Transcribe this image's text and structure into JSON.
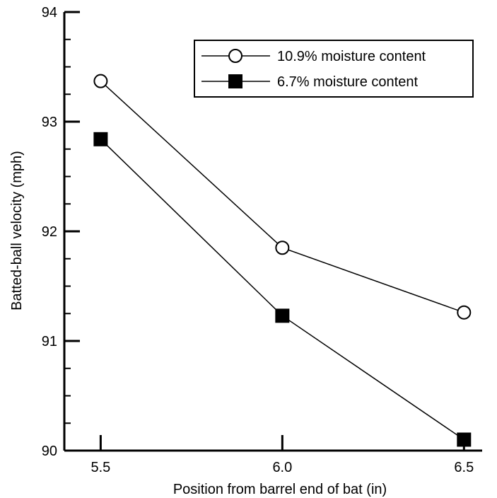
{
  "chart_data": {
    "type": "line",
    "xlabel": "Position from barrel end of bat (in)",
    "ylabel": "Batted-ball velocity (mph)",
    "x": [
      5.5,
      6.0,
      6.5
    ],
    "x_tick_labels": [
      "5.5",
      "6.0",
      "6.5"
    ],
    "xlim": [
      5.4,
      6.55
    ],
    "ylim": [
      90,
      94
    ],
    "y_ticks": [
      90,
      91,
      92,
      93,
      94
    ],
    "y_tick_labels": [
      "90",
      "91",
      "92",
      "93",
      "94"
    ],
    "y_minor_tick_step": 0.25,
    "grid": false,
    "legend_position": "top-right",
    "series": [
      {
        "name": "10.9% moisture content",
        "marker": "open-circle",
        "color": "#000000",
        "values": [
          93.37,
          91.85,
          91.26
        ]
      },
      {
        "name": "6.7% moisture content",
        "marker": "filled-square",
        "color": "#000000",
        "values": [
          92.84,
          91.23,
          90.1
        ]
      }
    ]
  }
}
